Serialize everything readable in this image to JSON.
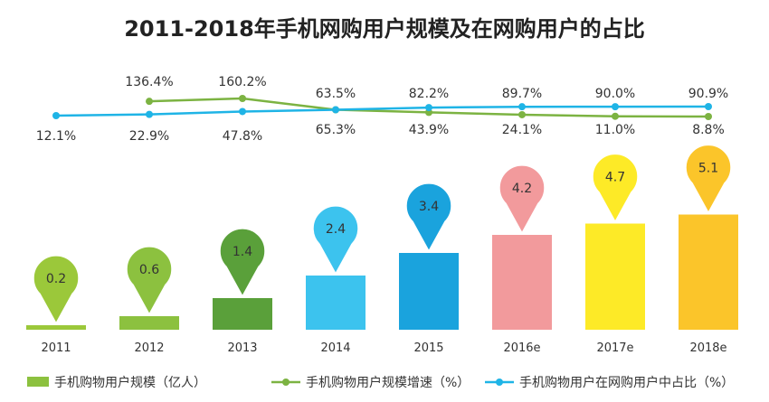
{
  "chart_data": {
    "type": "bar",
    "title": "2011-2018年手机网购用户规模及在网购用户的占比",
    "categories": [
      "2011",
      "2012",
      "2013",
      "2014",
      "2015",
      "2016e",
      "2017e",
      "2018e"
    ],
    "series": [
      {
        "name": "手机购物用户规模（亿人）",
        "type": "bar",
        "values": [
          0.2,
          0.6,
          1.4,
          2.4,
          3.4,
          4.2,
          4.7,
          5.1
        ],
        "labels": [
          "0.2",
          "0.6",
          "1.4",
          "2.4",
          "3.4",
          "4.2",
          "4.7",
          "5.1"
        ],
        "colors": [
          "#9bc83a",
          "#8cc13f",
          "#5aa03a",
          "#3cc3ee",
          "#1aa3dd",
          "#f29a9c",
          "#fdea27",
          "#fbc52a"
        ]
      },
      {
        "name": "手机购物用户规模增速（%）",
        "type": "line",
        "color": "#7cb342",
        "values": [
          null,
          136.4,
          160.2,
          65.3,
          43.9,
          24.1,
          11.0,
          8.8
        ],
        "labels": [
          "",
          "136.4%",
          "160.2%",
          "65.3%",
          "43.9%",
          "24.1%",
          "11.0%",
          "8.8%"
        ]
      },
      {
        "name": "手机购物用户在网购用户中占比（%）",
        "type": "line",
        "color": "#1fb4e6",
        "values": [
          12.1,
          22.9,
          47.8,
          63.5,
          82.2,
          89.7,
          90.0,
          90.9
        ],
        "labels": [
          "12.1%",
          "22.9%",
          "47.8%",
          "63.5%",
          "82.2%",
          "89.7%",
          "90.0%",
          "90.9%"
        ]
      }
    ],
    "legend": "bottom",
    "grid": false
  }
}
